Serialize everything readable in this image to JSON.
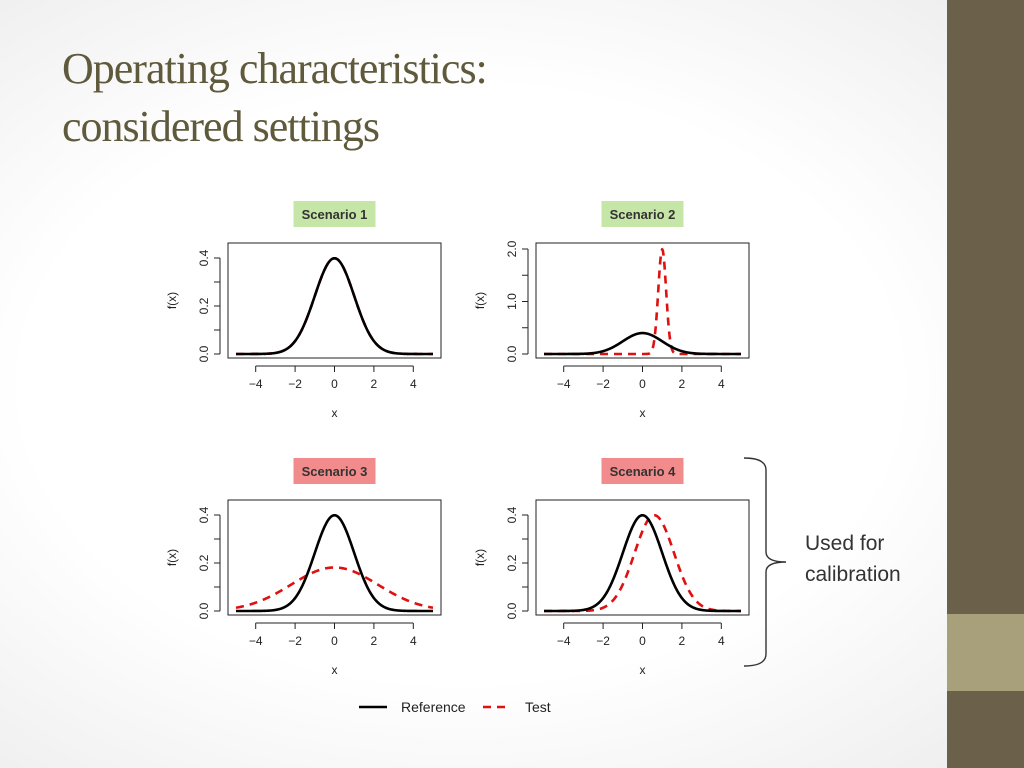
{
  "slide": {
    "title_line1": "Operating characteristics:",
    "title_line2": "considered settings",
    "calibration_label_line1": "Used for",
    "calibration_label_line2": "calibration"
  },
  "colors": {
    "title": "#5f5a3c",
    "sidebar": "#6b604a",
    "sidebar_accent": "#a8a07a",
    "scenario_green": "#c6e6a8",
    "scenario_red": "#f28b8b",
    "reference_line": "#000000",
    "test_line": "#e01010"
  },
  "legend": {
    "entries": [
      {
        "label": "Reference",
        "style": "solid",
        "color": "#000000"
      },
      {
        "label": "Test",
        "style": "dashed",
        "color": "#e01010"
      }
    ],
    "placement": "bottom-center"
  },
  "chart_data": [
    {
      "type": "line",
      "title": "Scenario 1",
      "title_highlight": "green",
      "xlabel": "x",
      "ylabel": "f(x)",
      "xlim": [
        -5,
        5
      ],
      "ylim": [
        0,
        0.4
      ],
      "xticks": [
        -4,
        -2,
        0,
        2,
        4
      ],
      "yticks": [
        0.0,
        0.2,
        0.4
      ],
      "ytick_labels": [
        "0.0",
        "0.2",
        "0.4"
      ],
      "series": [
        {
          "name": "Reference",
          "distribution": "normal",
          "mean": 0,
          "sd": 1
        },
        {
          "name": "Test",
          "distribution": "normal",
          "mean": 0,
          "sd": 1
        }
      ]
    },
    {
      "type": "line",
      "title": "Scenario 2",
      "title_highlight": "green",
      "xlabel": "x",
      "ylabel": "f(x)",
      "xlim": [
        -5,
        5
      ],
      "ylim": [
        0,
        2.0
      ],
      "xticks": [
        -4,
        -2,
        0,
        2,
        4
      ],
      "yticks": [
        0.0,
        1.0,
        2.0
      ],
      "ytick_labels": [
        "0.0",
        "1.0",
        "2.0"
      ],
      "series": [
        {
          "name": "Reference",
          "distribution": "normal",
          "mean": 0,
          "sd": 1
        },
        {
          "name": "Test",
          "distribution": "normal",
          "mean": 1,
          "sd": 0.2
        }
      ]
    },
    {
      "type": "line",
      "title": "Scenario 3",
      "title_highlight": "red",
      "xlabel": "x",
      "ylabel": "f(x)",
      "xlim": [
        -5,
        5
      ],
      "ylim": [
        0,
        0.4
      ],
      "xticks": [
        -4,
        -2,
        0,
        2,
        4
      ],
      "yticks": [
        0.0,
        0.2,
        0.4
      ],
      "ytick_labels": [
        "0.0",
        "0.2",
        "0.4"
      ],
      "series": [
        {
          "name": "Reference",
          "distribution": "normal",
          "mean": 0,
          "sd": 1
        },
        {
          "name": "Test",
          "distribution": "normal",
          "mean": 0,
          "sd": 2.2
        }
      ]
    },
    {
      "type": "line",
      "title": "Scenario 4",
      "title_highlight": "red",
      "xlabel": "x",
      "ylabel": "f(x)",
      "xlim": [
        -5,
        5
      ],
      "ylim": [
        0,
        0.4
      ],
      "xticks": [
        -4,
        -2,
        0,
        2,
        4
      ],
      "yticks": [
        0.0,
        0.2,
        0.4
      ],
      "ytick_labels": [
        "0.0",
        "0.2",
        "0.4"
      ],
      "series": [
        {
          "name": "Reference",
          "distribution": "normal",
          "mean": 0,
          "sd": 1
        },
        {
          "name": "Test",
          "distribution": "normal",
          "mean": 0.6,
          "sd": 1
        }
      ]
    }
  ]
}
